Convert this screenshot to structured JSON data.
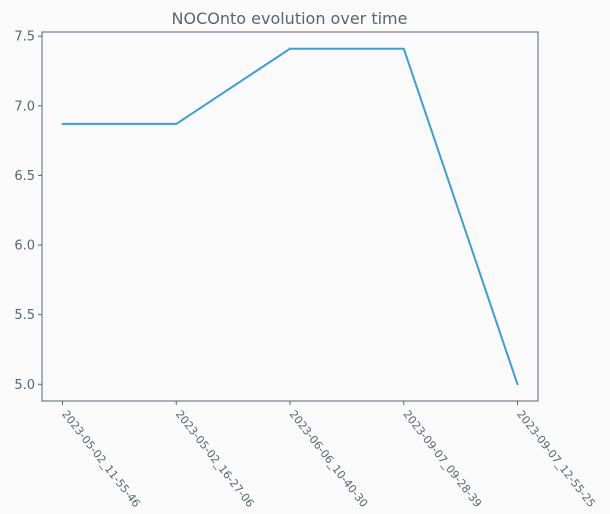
{
  "chart_data": {
    "type": "line",
    "title": "NOCOnto evolution over time",
    "xlabel": "",
    "ylabel": "",
    "categories": [
      "2023-05-02_11-55-46",
      "2023-05-02_16-27-06",
      "2023-06-06_10-40-30",
      "2023-09-07_09-28-39",
      "2023-09-07_12-55-25"
    ],
    "series": [
      {
        "name": "",
        "values": [
          6.87,
          6.87,
          7.41,
          7.41,
          5.0
        ],
        "color": "#3a9fd6"
      }
    ],
    "ylim": [
      4.88,
      7.53
    ],
    "yticks": [
      "5.0",
      "5.5",
      "6.0",
      "6.5",
      "7.0",
      "7.5"
    ],
    "grid": false,
    "legend": "none"
  }
}
